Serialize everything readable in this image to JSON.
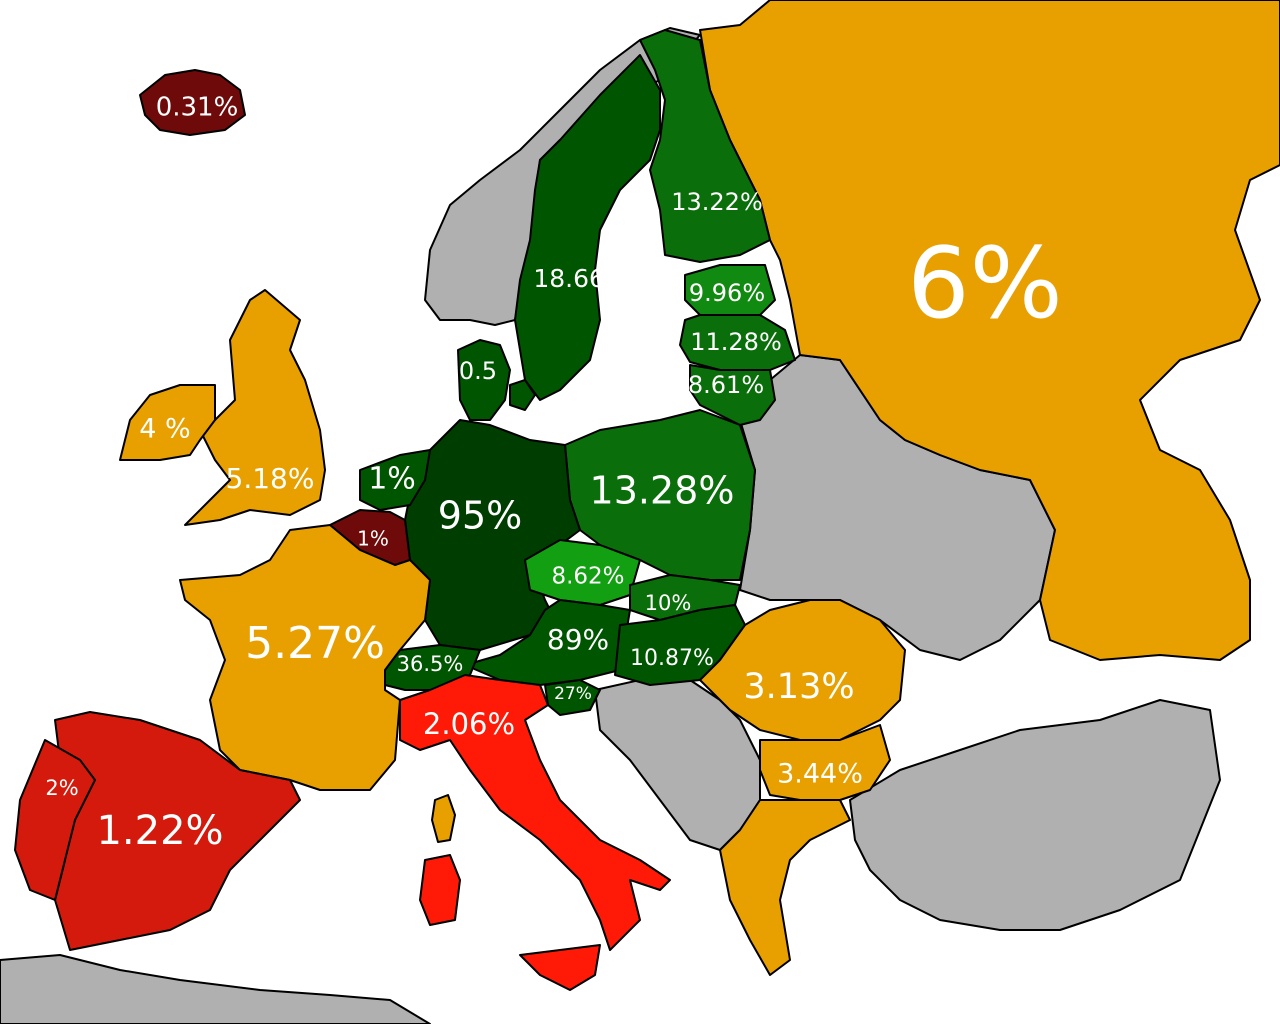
{
  "colors": {
    "sea": "#ffffff",
    "no_data": "#b0b0b0",
    "very_high": "#003d00",
    "high": "#005500",
    "medium_high": "#0a6e0a",
    "medium": "#118a11",
    "light_green": "#12a012",
    "orange": "#e8a000",
    "red_orange": "#ff1a08",
    "red": "#d41a0c",
    "dark_red": "#6e0a0a",
    "label_text": "#ffffff",
    "border": "#000000"
  },
  "labels": {
    "iceland": "0.31%",
    "russia": "6%",
    "finland": "13.22%",
    "sweden": "18.66%",
    "estonia": "9.96%",
    "latvia": "11.28%",
    "lithuania": "8.61%",
    "denmark": "0.5",
    "ireland": "4 %",
    "uk": "5.18%",
    "netherlands": "1%",
    "belgium": "1%",
    "germany": "95%",
    "poland": "13.28%",
    "czechia": "8.62%",
    "slovakia": "10%",
    "austria": "89%",
    "hungary": "10.87%",
    "switzerland": "36.5%",
    "slovenia": "27%",
    "france": "5.27%",
    "italy": "2.06%",
    "romania": "3.13%",
    "bulgaria": "3.44%",
    "portugal": "2%",
    "spain": "1.22%"
  }
}
